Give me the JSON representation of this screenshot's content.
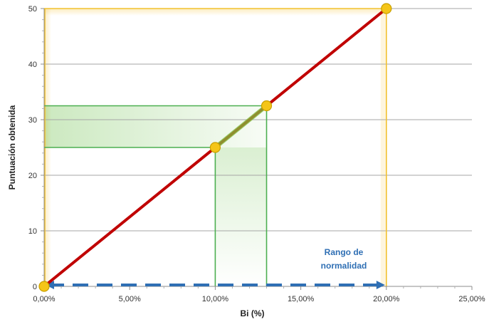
{
  "chart_data": {
    "type": "line",
    "xlabel": "Bi (%)",
    "ylabel": "Puntuación obtenida",
    "xlim": [
      0,
      25
    ],
    "ylim": [
      0,
      50
    ],
    "x_tick_labels": [
      "0,00%",
      "5,00%",
      "10,00%",
      "15,00%",
      "20,00%",
      "25,00%"
    ],
    "y_tick_labels": [
      "0",
      "10",
      "20",
      "30",
      "40",
      "50"
    ],
    "grid": "horizontal",
    "series": [
      {
        "x": [
          0,
          20
        ],
        "y": [
          0,
          50
        ],
        "color": "#c00000"
      }
    ],
    "highlight_points": [
      {
        "x": 0,
        "y": 0
      },
      {
        "x": 10,
        "y": 25
      },
      {
        "x": 13,
        "y": 32.5
      },
      {
        "x": 20,
        "y": 50
      }
    ],
    "highlight_segment": {
      "x": [
        10,
        13
      ],
      "y": [
        25,
        32.5
      ],
      "color": "#7fbf3f"
    },
    "reference_box_outer": {
      "x": [
        0,
        20
      ],
      "y": [
        0,
        50
      ],
      "color": "#f2c12e"
    },
    "reference_box_inner": {
      "x": [
        10,
        13
      ],
      "y": [
        25,
        32.5
      ],
      "color": "#4caf50"
    },
    "normality_range": {
      "x": [
        0,
        20
      ],
      "color": "#2f6fb4"
    },
    "annotation": [
      "Rango de",
      "normalidad"
    ],
    "colors": {
      "line": "#c00000",
      "marker_fill": "#f5c518",
      "marker_stroke": "#c9a000",
      "grid": "#a6a6a6",
      "outer_box": "#f2c12e",
      "inner_box": "#4caf50",
      "range_arrow": "#2f6fb4"
    }
  }
}
